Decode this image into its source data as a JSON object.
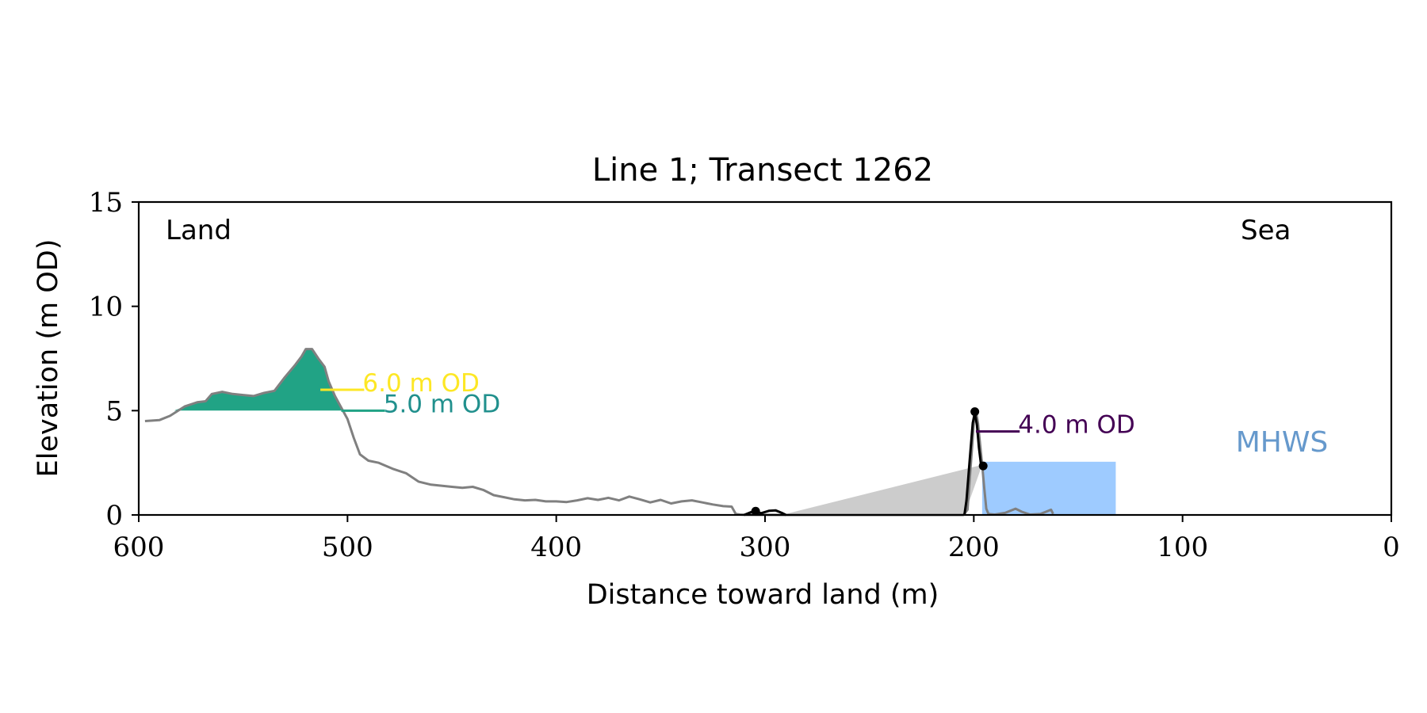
{
  "chart_data": {
    "type": "line",
    "title": "Line 1; Transect 1262",
    "xlabel": "Distance toward land (m)",
    "ylabel": "Elevation (m OD)",
    "xlim": [
      600,
      0
    ],
    "ylim": [
      0,
      15
    ],
    "x_reversed": true,
    "xticks": [
      600,
      500,
      400,
      300,
      200,
      100,
      0
    ],
    "yticks": [
      0,
      5,
      10,
      15
    ],
    "grid": false,
    "corner_labels": {
      "left": "Land",
      "right": "Sea"
    },
    "mhws_label": "MHWS",
    "colors": {
      "profile": "#808080",
      "dune_black": "#000000",
      "level_6": "#fde725",
      "level_5": "#21a385",
      "level_4": "#440154",
      "mhws": "#9ecbff",
      "mhws_text": "#6699cc",
      "wedge": "#cccccc"
    },
    "profile": [
      [
        597,
        4.5
      ],
      [
        590,
        4.55
      ],
      [
        585,
        4.75
      ],
      [
        578,
        5.2
      ],
      [
        572,
        5.4
      ],
      [
        568,
        5.45
      ],
      [
        565,
        5.8
      ],
      [
        560,
        5.9
      ],
      [
        555,
        5.8
      ],
      [
        550,
        5.75
      ],
      [
        545,
        5.7
      ],
      [
        540,
        5.85
      ],
      [
        535,
        5.95
      ],
      [
        530,
        6.6
      ],
      [
        525,
        7.2
      ],
      [
        522,
        7.6
      ],
      [
        520,
        7.95
      ],
      [
        517,
        7.95
      ],
      [
        514,
        7.5
      ],
      [
        511,
        7.1
      ],
      [
        509,
        6.4
      ],
      [
        506,
        5.7
      ],
      [
        503,
        5.15
      ],
      [
        500,
        4.6
      ],
      [
        497,
        3.7
      ],
      [
        494,
        2.9
      ],
      [
        490,
        2.6
      ],
      [
        485,
        2.5
      ],
      [
        478,
        2.2
      ],
      [
        472,
        2.0
      ],
      [
        466,
        1.6
      ],
      [
        460,
        1.45
      ],
      [
        455,
        1.4
      ],
      [
        450,
        1.35
      ],
      [
        445,
        1.3
      ],
      [
        440,
        1.35
      ],
      [
        435,
        1.2
      ],
      [
        430,
        0.95
      ],
      [
        425,
        0.85
      ],
      [
        420,
        0.75
      ],
      [
        415,
        0.7
      ],
      [
        410,
        0.72
      ],
      [
        405,
        0.65
      ],
      [
        400,
        0.65
      ],
      [
        395,
        0.62
      ],
      [
        390,
        0.7
      ],
      [
        385,
        0.8
      ],
      [
        380,
        0.72
      ],
      [
        375,
        0.82
      ],
      [
        370,
        0.7
      ],
      [
        365,
        0.88
      ],
      [
        360,
        0.75
      ],
      [
        355,
        0.6
      ],
      [
        350,
        0.72
      ],
      [
        345,
        0.55
      ],
      [
        340,
        0.65
      ],
      [
        335,
        0.7
      ],
      [
        330,
        0.6
      ],
      [
        325,
        0.5
      ],
      [
        320,
        0.42
      ],
      [
        316,
        0.4
      ],
      [
        314,
        0.05
      ],
      [
        312,
        0.02
      ],
      [
        310,
        0.01
      ],
      [
        290,
        0
      ],
      [
        205,
        0
      ],
      [
        203,
        0.25
      ],
      [
        201,
        3.0
      ],
      [
        200,
        4.4
      ],
      [
        199,
        5.0
      ],
      [
        198,
        4.4
      ],
      [
        196,
        2.4
      ],
      [
        195,
        1.3
      ],
      [
        194,
        0.3
      ],
      [
        193,
        0.05
      ],
      [
        190,
        0.02
      ],
      [
        185,
        0.1
      ],
      [
        180,
        0.3
      ],
      [
        177,
        0.15
      ],
      [
        173,
        0.02
      ],
      [
        168,
        0.05
      ],
      [
        163,
        0.25
      ],
      [
        162,
        0.05
      ]
    ],
    "dune_outline": [
      [
        204.5,
        0
      ],
      [
        203.5,
        0.7
      ],
      [
        202,
        2.6
      ],
      [
        200.5,
        4.4
      ],
      [
        199.5,
        4.9
      ],
      [
        198.5,
        4.3
      ],
      [
        197.5,
        3.2
      ],
      [
        196.5,
        2.4
      ]
    ],
    "toe_outline": [
      [
        310,
        0
      ],
      [
        307,
        0.12
      ],
      [
        305,
        0.2
      ],
      [
        302,
        0.08
      ],
      [
        298,
        0.2
      ],
      [
        295,
        0.22
      ],
      [
        292,
        0.1
      ],
      [
        290,
        0
      ]
    ],
    "points": [
      {
        "x": 199.5,
        "y": 4.95
      },
      {
        "x": 195.5,
        "y": 2.35
      },
      {
        "x": 304.5,
        "y": 0.18
      }
    ],
    "wedge": [
      [
        292,
        0
      ],
      [
        196,
        2.4
      ],
      [
        204.5,
        0
      ]
    ],
    "mhws_box": {
      "x0": 196,
      "x1": 132,
      "y0": 0,
      "y1": 2.55
    },
    "levels": [
      {
        "label": "6.0 m OD",
        "level": 6.0,
        "x_start": 513,
        "x_end": 492,
        "color": "#fde725",
        "text_color": "#fde725"
      },
      {
        "label": "5.0 m OD",
        "level": 5.0,
        "x_start": 503,
        "x_end": 482,
        "color": "#21a385",
        "text_color": "#21908d"
      },
      {
        "label": "4.0 m OD",
        "level": 4.0,
        "x_start": 199,
        "x_end": 178,
        "color": "#440154",
        "text_color": "#440154"
      }
    ],
    "fills": [
      {
        "level": 6.0,
        "x_from": 534,
        "x_to": 509,
        "color": "#fde725"
      },
      {
        "level": 5.0,
        "x_from": 583,
        "x_to": 502,
        "color": "#21a385"
      }
    ]
  }
}
